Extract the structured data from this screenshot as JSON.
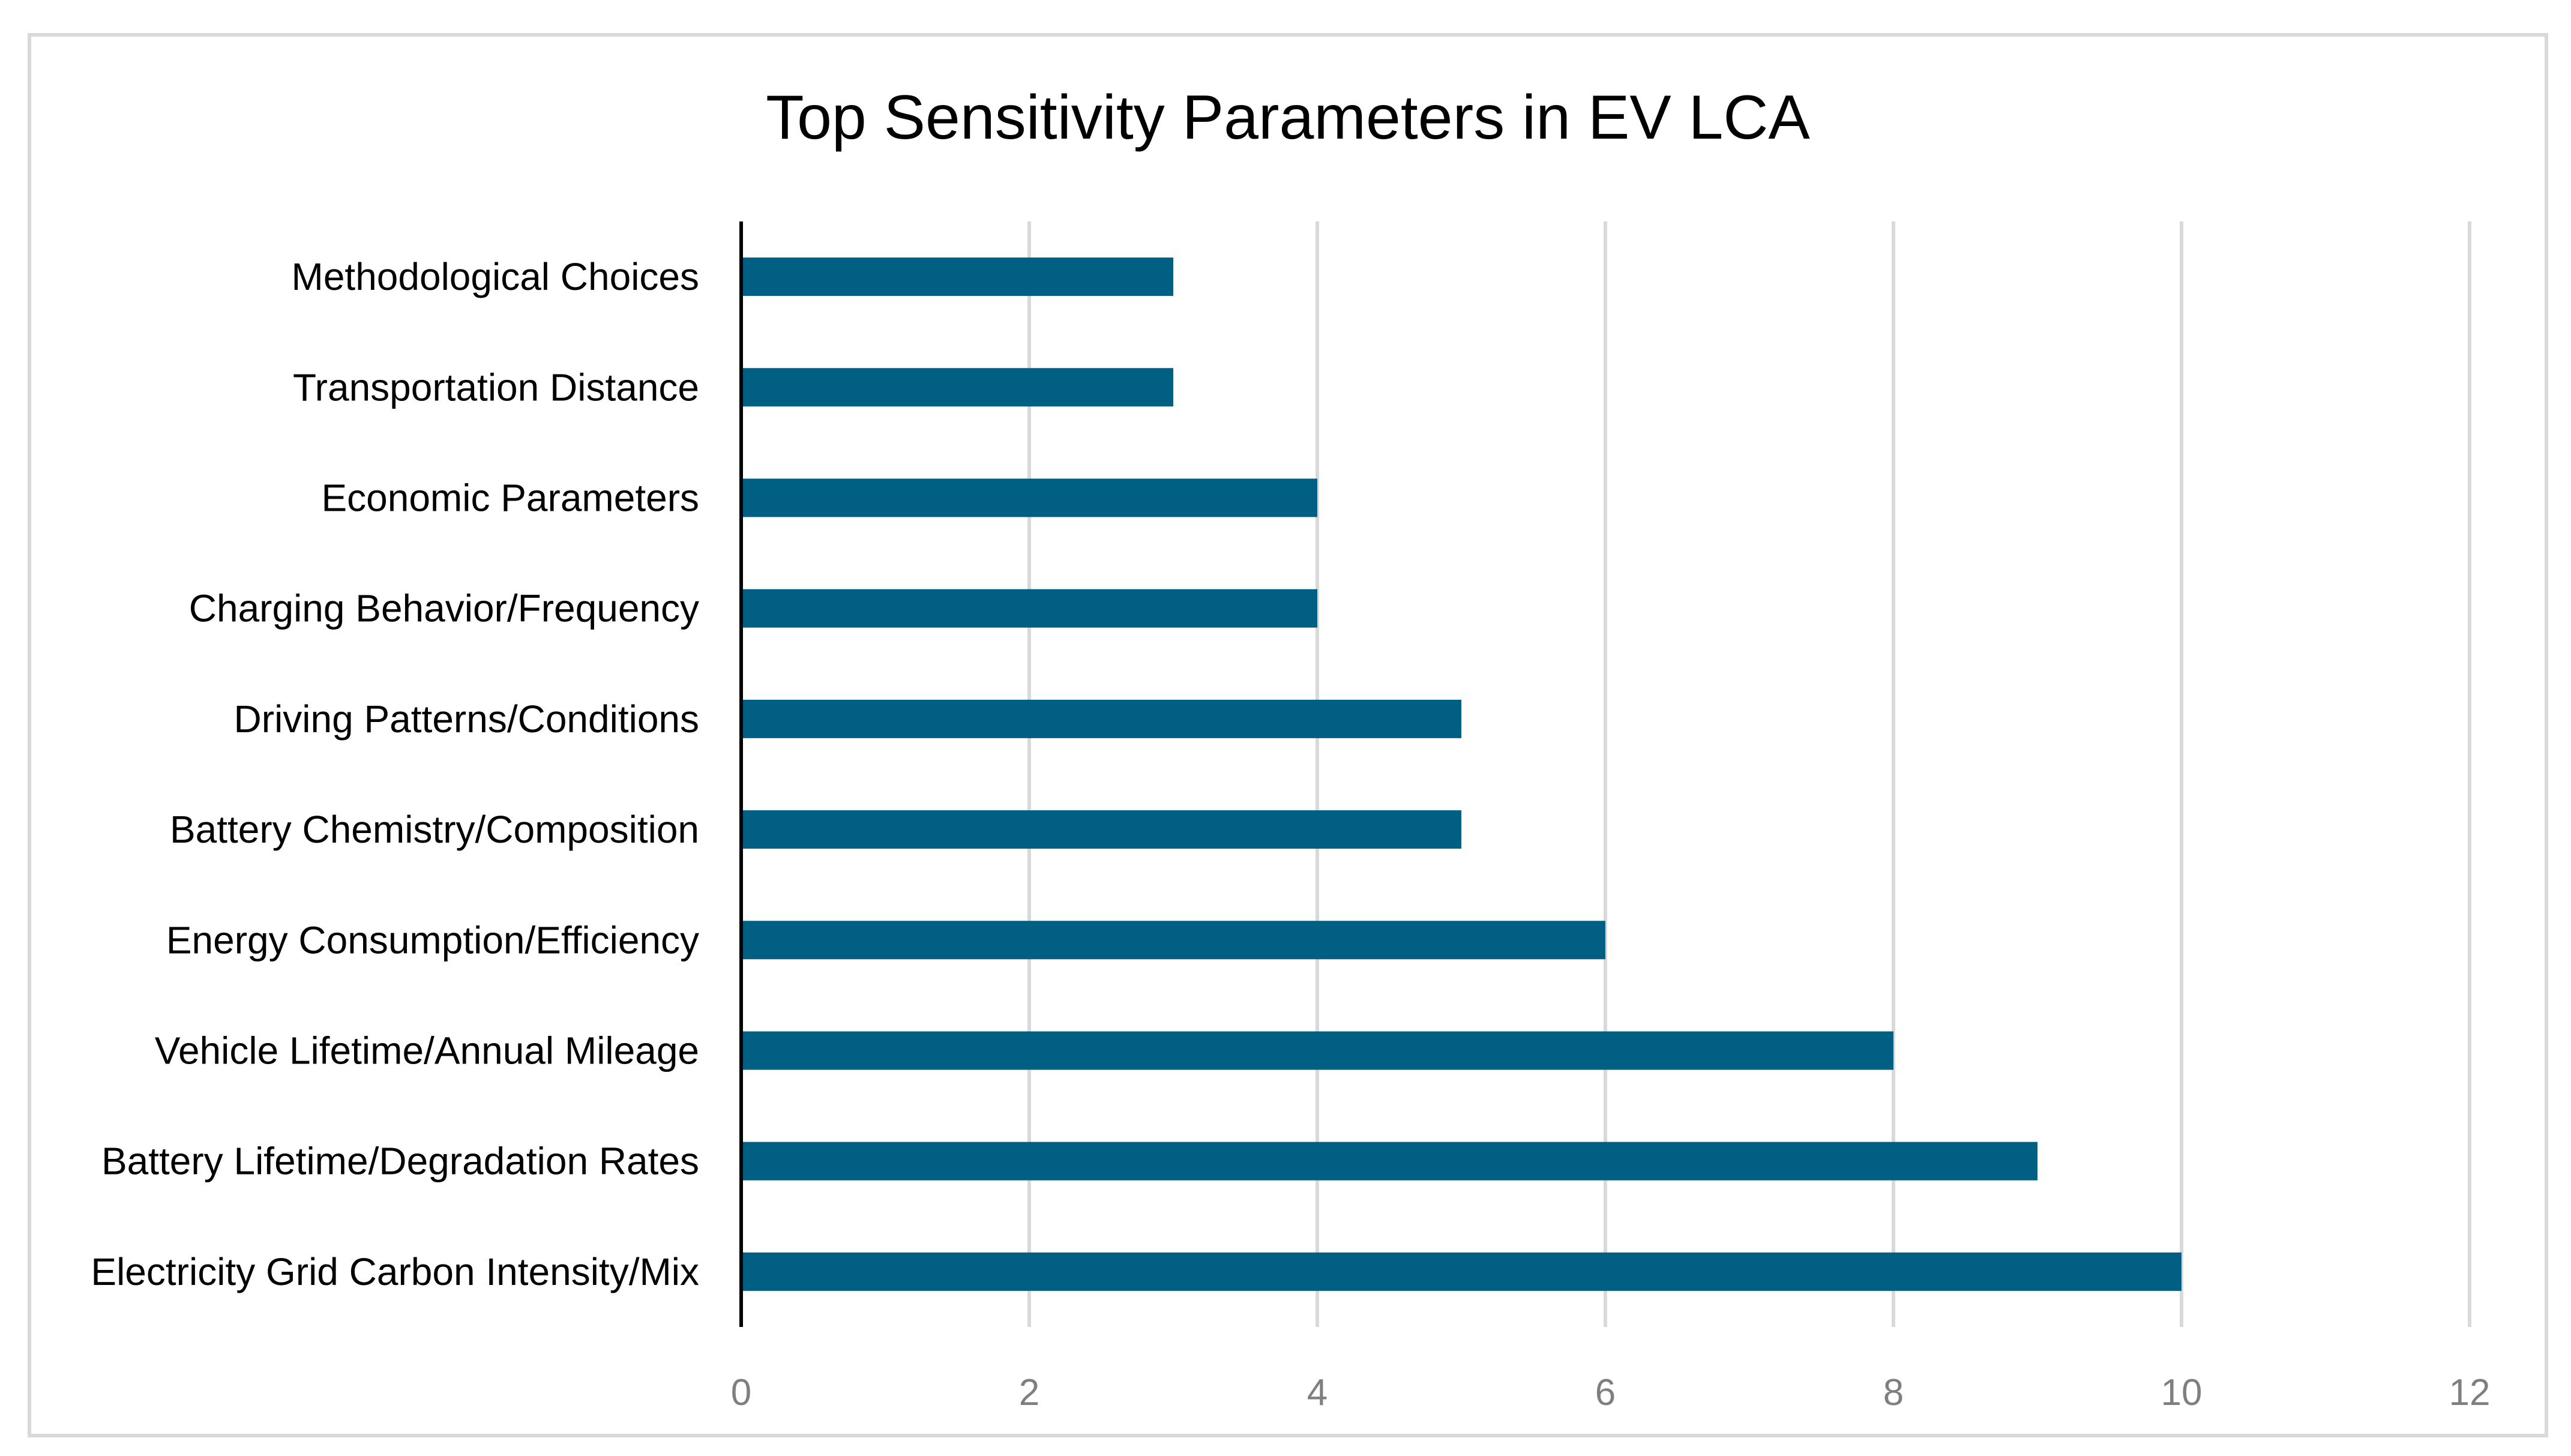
{
  "chart_data": {
    "type": "bar",
    "orientation": "horizontal",
    "title": "Top Sensitivity Parameters in EV LCA",
    "xlabel": "",
    "ylabel": "",
    "categories": [
      "Methodological Choices",
      "Transportation Distance",
      "Economic Parameters",
      "Charging Behavior/Frequency",
      "Driving Patterns/Conditions",
      "Battery Chemistry/Composition",
      "Energy Consumption/Efficiency",
      "Vehicle Lifetime/Annual Mileage",
      "Battery Lifetime/Degradation Rates",
      "Electricity Grid Carbon Intensity/Mix"
    ],
    "values": [
      3,
      3,
      4,
      4,
      5,
      5,
      6,
      8,
      9,
      10
    ],
    "xlim": [
      0,
      12
    ],
    "xticks": [
      "0",
      "2",
      "4",
      "6",
      "8",
      "10",
      "12"
    ],
    "grid": true,
    "legend": "none",
    "bar_color": "#005f82"
  }
}
